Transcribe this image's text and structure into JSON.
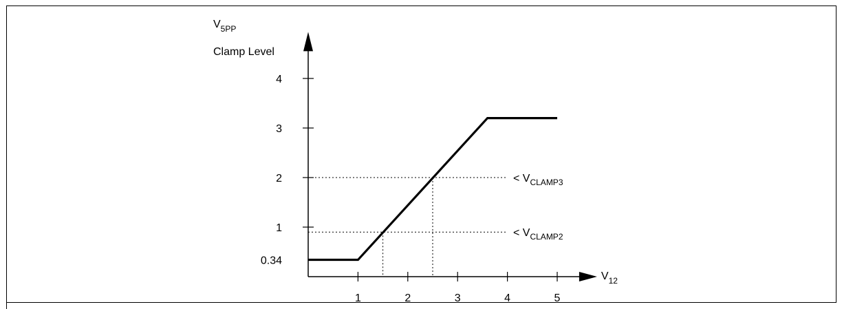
{
  "chart_data": {
    "type": "line",
    "title": "",
    "ylabel": {
      "main": "V",
      "sub": "5PP",
      "second_line": "Clamp Level"
    },
    "xlabel": {
      "main": "V",
      "sub": "12"
    },
    "xlim": [
      0,
      5.8
    ],
    "ylim": [
      0,
      4.8
    ],
    "x_ticks": [
      1,
      2,
      3,
      4,
      5
    ],
    "x_tick_labels": [
      "1",
      "2",
      "3",
      "4",
      "5"
    ],
    "y_ticks": [
      0.34,
      1,
      2,
      3,
      4
    ],
    "y_tick_labels": [
      "0.34",
      "1",
      "2",
      "3",
      "4"
    ],
    "grid": false,
    "series": [
      {
        "x": [
          0,
          1,
          3.6,
          5
        ],
        "y": [
          0.34,
          0.34,
          3.2,
          3.2
        ]
      }
    ],
    "annotations": [
      {
        "main": "< V",
        "sub": "CLAMP3",
        "y": 2.0,
        "x_drop": 2.5
      },
      {
        "main": "< V",
        "sub": "CLAMP2",
        "y": 0.9,
        "x_drop": 1.5
      }
    ]
  }
}
